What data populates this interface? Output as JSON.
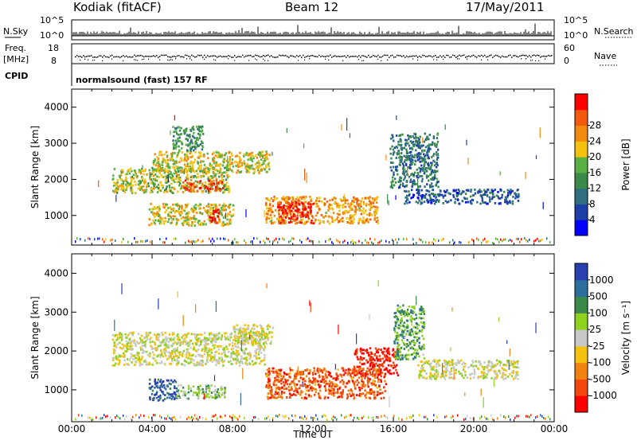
{
  "header": {
    "station": "Kodiak (fitACF)",
    "beam": "Beam 12",
    "date": "17/May/2011"
  },
  "side_labels": {
    "nsky": "N.Sky",
    "nsky_ticks": [
      "10^5",
      "10^0"
    ],
    "nsearch": "N.Search",
    "nsearch_ticks": [
      "10^5",
      "10^0"
    ],
    "freq_line1": "Freq.",
    "freq_line2": "[MHz]",
    "freq_ticks": [
      "18",
      "8"
    ],
    "nave": "Nave",
    "nave_ticks": [
      "60",
      "0"
    ],
    "cpid": "CPID",
    "cpid_value": "normalsound (fast) 157 RF"
  },
  "colors": {
    "power_scale": [
      "#0000ff",
      "#1f3fa8",
      "#2f6f7f",
      "#3a8a4a",
      "#5ab043",
      "#f2c20f",
      "#f28a0f",
      "#f25a0f",
      "#ff0000"
    ],
    "velocity_scale": [
      "#ff0000",
      "#f2480f",
      "#f2820f",
      "#f2c20f",
      "#c8c8c8",
      "#8fd11f",
      "#3a8a4a",
      "#2f6f9f",
      "#2a3fb0"
    ]
  },
  "chart_data": [
    {
      "type": "heatmap",
      "name": "power",
      "xlabel": "Time UT",
      "ylabel": "Slant Range [km]",
      "xticks": [
        "00:00",
        "04:00",
        "08:00",
        "12:00",
        "16:00",
        "20:00",
        "00:00"
      ],
      "xlim_hours": [
        0,
        24
      ],
      "yticks": [
        "1000",
        "2000",
        "3000",
        "4000"
      ],
      "ylim_km": [
        180,
        4500
      ],
      "colorbar_label": "Power [dB]",
      "colorbar_ticks": [
        "4",
        "8",
        "12",
        "16",
        "20",
        "24",
        "28"
      ],
      "colorbar_range": [
        0,
        30
      ],
      "regions": [
        {
          "t0": 2.0,
          "t1": 7.8,
          "r0": 1650,
          "r1": 2350,
          "level": 0.55
        },
        {
          "t0": 4.0,
          "t1": 9.8,
          "r0": 2200,
          "r1": 2800,
          "level": 0.6
        },
        {
          "t0": 5.5,
          "t1": 7.5,
          "r0": 1700,
          "r1": 2000,
          "level": 0.85
        },
        {
          "t0": 3.8,
          "t1": 8.0,
          "r0": 750,
          "r1": 1350,
          "level": 0.6
        },
        {
          "t0": 6.8,
          "t1": 7.3,
          "r0": 750,
          "r1": 1200,
          "level": 0.95
        },
        {
          "t0": 9.6,
          "t1": 15.2,
          "r0": 800,
          "r1": 1550,
          "level": 0.7
        },
        {
          "t0": 10.2,
          "t1": 12.0,
          "r0": 800,
          "r1": 1400,
          "level": 0.95
        },
        {
          "t0": 15.8,
          "t1": 18.2,
          "r0": 1800,
          "r1": 3300,
          "level": 0.3
        },
        {
          "t0": 16.5,
          "t1": 22.2,
          "r0": 1350,
          "r1": 1750,
          "level": 0.22
        },
        {
          "t0": 5.0,
          "t1": 6.5,
          "r0": 2800,
          "r1": 3500,
          "level": 0.4
        }
      ]
    },
    {
      "type": "heatmap",
      "name": "velocity",
      "xlabel": "Time UT",
      "ylabel": "Slant Range [km]",
      "xticks": [
        "00:00",
        "04:00",
        "08:00",
        "12:00",
        "16:00",
        "20:00",
        "00:00"
      ],
      "xlim_hours": [
        0,
        24
      ],
      "yticks": [
        "1000",
        "2000",
        "3000",
        "4000"
      ],
      "ylim_km": [
        180,
        4500
      ],
      "colorbar_label": "Velocity [m s⁻¹]",
      "colorbar_ticks": [
        "1000",
        "500",
        "100",
        "25",
        "-25",
        "-100",
        "-500",
        "-1000"
      ],
      "regions": [
        {
          "t0": 2.0,
          "t1": 9.6,
          "r0": 1650,
          "r1": 2500,
          "level": 0.5
        },
        {
          "t0": 3.8,
          "t1": 5.2,
          "r0": 750,
          "r1": 1300,
          "level": 0.88
        },
        {
          "t0": 5.2,
          "t1": 7.6,
          "r0": 800,
          "r1": 1150,
          "level": 0.6
        },
        {
          "t0": 9.6,
          "t1": 15.6,
          "r0": 800,
          "r1": 1600,
          "level": 0.2
        },
        {
          "t0": 14.0,
          "t1": 16.2,
          "r0": 1400,
          "r1": 2100,
          "level": 0.08
        },
        {
          "t0": 16.0,
          "t1": 17.5,
          "r0": 1800,
          "r1": 3200,
          "level": 0.7
        },
        {
          "t0": 17.2,
          "t1": 22.2,
          "r0": 1300,
          "r1": 1800,
          "level": 0.5
        },
        {
          "t0": 8.0,
          "t1": 10.0,
          "r0": 2200,
          "r1": 2700,
          "level": 0.5
        }
      ]
    }
  ]
}
